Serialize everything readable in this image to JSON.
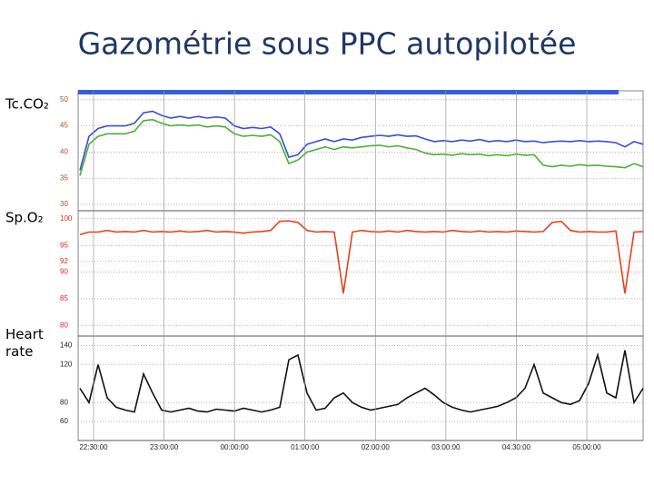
{
  "title": "Gazométrie sous PPC autopilotée",
  "chart_data": [
    {
      "type": "line",
      "label": "Tc.CO₂",
      "tick_color": "#a0522d",
      "ylim": [
        28.8,
        51.7
      ],
      "yticks": [
        50,
        45,
        40,
        35,
        30
      ],
      "series": [
        {
          "color": "#3a4fd0",
          "values": [
            36.5,
            43,
            44.5,
            45,
            45,
            45,
            45.5,
            47.5,
            47.8,
            47,
            46.5,
            46.8,
            46.5,
            46.8,
            46.5,
            46.7,
            46.5,
            45,
            44.5,
            44.7,
            44.5,
            44.8,
            43.5,
            39,
            39.5,
            41.5,
            42,
            42.5,
            42,
            42.5,
            42.3,
            42.8,
            43,
            43.2,
            43,
            43.3,
            43,
            43.1,
            42.5,
            42,
            42.2,
            42,
            42.3,
            42.1,
            42.4,
            42,
            42.2,
            42,
            42.3,
            42,
            42.1,
            41.8,
            42,
            42.1,
            42,
            42.2,
            42,
            42.1,
            42,
            41.8,
            41,
            42,
            41.5
          ]
        },
        {
          "color": "#4caf3a",
          "values": [
            35.5,
            41.5,
            43,
            43.5,
            43.5,
            43.5,
            44,
            46,
            46.2,
            45.5,
            45,
            45.2,
            45,
            45.2,
            44.8,
            45,
            44.8,
            43.5,
            43,
            43.2,
            43,
            43.3,
            42,
            37.8,
            38.5,
            40,
            40.5,
            41,
            40.5,
            41,
            40.8,
            41,
            41.2,
            41.3,
            41,
            41.2,
            40.8,
            40.5,
            39.8,
            39.5,
            39.6,
            39.4,
            39.7,
            39.5,
            39.6,
            39.3,
            39.5,
            39.3,
            39.6,
            39.4,
            39.5,
            37.5,
            37.2,
            37.5,
            37.3,
            37.6,
            37.4,
            37.5,
            37.3,
            37.2,
            37,
            37.8,
            37.2
          ]
        }
      ]
    },
    {
      "type": "line",
      "label": "Sp.O₂",
      "tick_color": "#d42a1a",
      "ylim": [
        78,
        101.5
      ],
      "yticks": [
        100,
        95,
        92,
        90,
        85,
        80
      ],
      "series": [
        {
          "color": "#e8401c",
          "values": [
            97,
            97.5,
            97.5,
            97.8,
            97.5,
            97.6,
            97.5,
            97.8,
            97.5,
            97.6,
            97.5,
            97.7,
            97.5,
            97.6,
            97.8,
            97.5,
            97.6,
            97.5,
            97.3,
            97.5,
            97.6,
            97.8,
            99.5,
            99.6,
            99.3,
            97.8,
            97.5,
            97.6,
            97.5,
            86,
            97.5,
            97.8,
            97.6,
            97.5,
            97.7,
            97.5,
            97.8,
            97.6,
            97.5,
            97.6,
            97.5,
            97.8,
            97.6,
            97.5,
            97.7,
            97.5,
            97.6,
            97.5,
            97.7,
            97.6,
            97.5,
            97.6,
            99.3,
            99.5,
            97.8,
            97.5,
            97.6,
            97.5,
            97.5,
            97.7,
            86,
            97.5,
            97.6
          ]
        }
      ]
    },
    {
      "type": "line",
      "label": "Heart rate",
      "tick_color": "#222222",
      "ylim": [
        40,
        150
      ],
      "yticks": [
        140,
        120,
        80,
        60
      ],
      "xtick_labels": [
        "22:30:00",
        "23:00:00",
        "00:00:00",
        "01:00:00",
        "02:00:00",
        "03:00:00",
        "04:30:00",
        "05:00:00"
      ],
      "series": [
        {
          "color": "#111111",
          "values": [
            95,
            80,
            120,
            85,
            75,
            72,
            70,
            110,
            90,
            72,
            70,
            72,
            74,
            71,
            70,
            73,
            72,
            71,
            74,
            72,
            70,
            72,
            75,
            125,
            130,
            90,
            72,
            74,
            85,
            90,
            80,
            75,
            72,
            74,
            76,
            78,
            85,
            90,
            95,
            88,
            80,
            75,
            72,
            70,
            72,
            74,
            76,
            80,
            85,
            95,
            120,
            90,
            85,
            80,
            78,
            82,
            100,
            130,
            90,
            85,
            135,
            80,
            95
          ]
        }
      ]
    }
  ]
}
